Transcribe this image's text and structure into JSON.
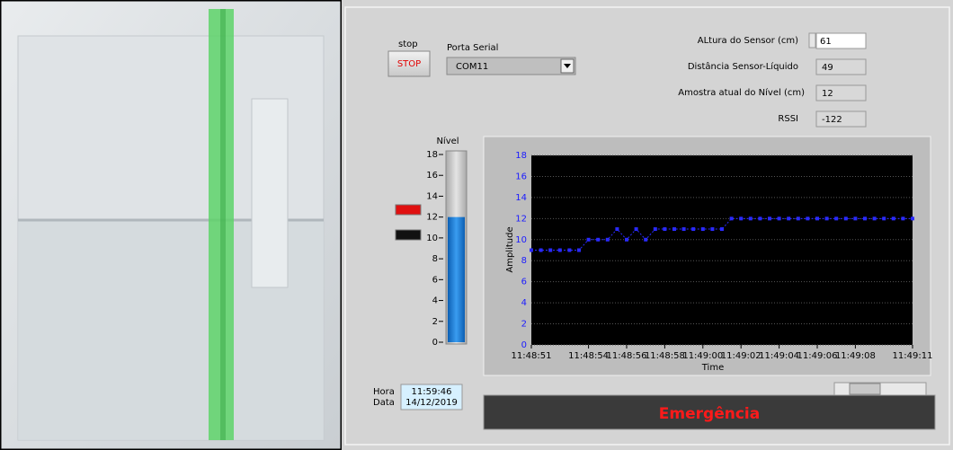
{
  "controls": {
    "stop_label": "stop",
    "stop_button": "STOP",
    "serial_label": "Porta Serial",
    "serial_value": "COM11",
    "sensor_height_label": "ALtura do Sensor (cm)",
    "sensor_height": 61,
    "distance_label": "Distância Sensor-Líquido",
    "distance": 49,
    "level_label": "Amostra atual do Nível (cm)",
    "level": 12,
    "rssi_label": "RSSI",
    "rssi": -122
  },
  "tank": {
    "title": "Nível",
    "ylim": [
      0,
      18
    ],
    "yticks": [
      0,
      2,
      4,
      6,
      8,
      10,
      12,
      14,
      16,
      18
    ],
    "value": 12
  },
  "clock": {
    "hora_label": "Hora",
    "time": "11:59:46",
    "data_label": "Data",
    "date": "14/12/2019"
  },
  "status": "Emergência",
  "chart_data": {
    "type": "line",
    "y_label": "Amplitude",
    "x_label": "Time",
    "x": [
      42531,
      42531.5,
      42532,
      42532.5,
      42533,
      42533.5,
      42534,
      42534.5,
      42535,
      42535.5,
      42536,
      42536.5,
      42537,
      42537.5,
      42538,
      42538.5,
      42539,
      42539.5,
      42540,
      42540.5,
      42541,
      42541.5,
      42542,
      42542.5,
      42543,
      42543.5,
      42544,
      42544.5,
      42545,
      42545.5,
      42546,
      42546.5,
      42547,
      42547.5,
      42548,
      42548.5,
      42549,
      42549.5,
      42550,
      42550.5,
      42551
    ],
    "series": [
      {
        "color": "#2a2aff",
        "values": [
          9,
          9,
          9,
          9,
          9,
          9,
          10,
          10,
          10,
          11,
          10,
          11,
          10,
          11,
          11,
          11,
          11,
          11,
          11,
          11,
          11,
          12,
          12,
          12,
          12,
          12,
          12,
          12,
          12,
          12,
          12,
          12,
          12,
          12,
          12,
          12,
          12,
          12,
          12,
          12,
          12
        ]
      }
    ],
    "xlim": [
      42531,
      42551
    ],
    "ylim": [
      0,
      18
    ],
    "xticks": [
      {
        "value": 42531,
        "label": "11:48:51"
      },
      {
        "value": 42534,
        "label": "11:48:54"
      },
      {
        "value": 42536,
        "label": "11:48:56"
      },
      {
        "value": 42538,
        "label": "11:48:58"
      },
      {
        "value": 42540,
        "label": "11:49:00"
      },
      {
        "value": 42542,
        "label": "11:49:02"
      },
      {
        "value": 42544,
        "label": "11:49:04"
      },
      {
        "value": 42546,
        "label": "11:49:06"
      },
      {
        "value": 42548,
        "label": "11:49:08"
      },
      {
        "value": 42551,
        "label": "11:49:11"
      }
    ],
    "yticks": [
      0,
      2,
      4,
      6,
      8,
      10,
      12,
      14,
      16,
      18
    ],
    "grid": true
  }
}
